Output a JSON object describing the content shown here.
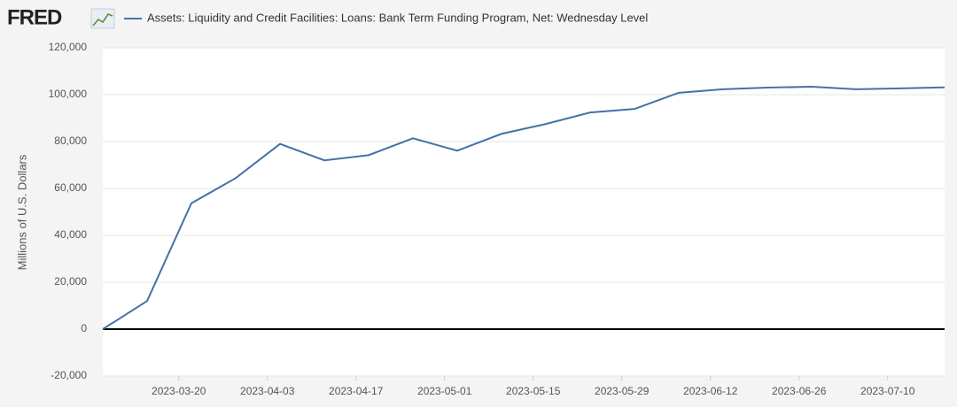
{
  "logo": "FRED",
  "chart_data": {
    "type": "line",
    "y_label": "Millions of U.S. Dollars",
    "x": [
      "2023-03-08",
      "2023-03-15",
      "2023-03-22",
      "2023-03-29",
      "2023-04-05",
      "2023-04-12",
      "2023-04-19",
      "2023-04-26",
      "2023-05-03",
      "2023-05-10",
      "2023-05-17",
      "2023-05-24",
      "2023-05-31",
      "2023-06-07",
      "2023-06-14",
      "2023-06-21",
      "2023-06-28",
      "2023-07-05",
      "2023-07-12",
      "2023-07-19"
    ],
    "series": [
      {
        "name": "Assets: Liquidity and Credit Facilities: Loans: Bank Term Funding Program, Net: Wednesday Level",
        "color": "#4572a7",
        "values": [
          0,
          12000,
          53700,
          64400,
          79000,
          72000,
          74200,
          81400,
          76100,
          83300,
          87500,
          92400,
          93900,
          100800,
          102300,
          103000,
          103400,
          102300,
          102700,
          103100
        ]
      }
    ],
    "xlim": [
      "2023-03-08",
      "2023-07-19"
    ],
    "xticks": [
      "2023-03-20",
      "2023-04-03",
      "2023-04-17",
      "2023-05-01",
      "2023-05-15",
      "2023-05-29",
      "2023-06-12",
      "2023-06-26",
      "2023-07-10"
    ],
    "ylim": [
      -20000,
      120000
    ],
    "yticks": [
      {
        "value": -20000,
        "label": "-20,000"
      },
      0,
      {
        "value": 20000,
        "label": "20,000"
      },
      {
        "value": 40000,
        "label": "40,000"
      },
      {
        "value": 60000,
        "label": "60,000"
      },
      {
        "value": 80000,
        "label": "80,000"
      },
      {
        "value": 100000,
        "label": "100,000"
      },
      {
        "value": 120000,
        "label": "120,000"
      }
    ],
    "grid": true
  }
}
